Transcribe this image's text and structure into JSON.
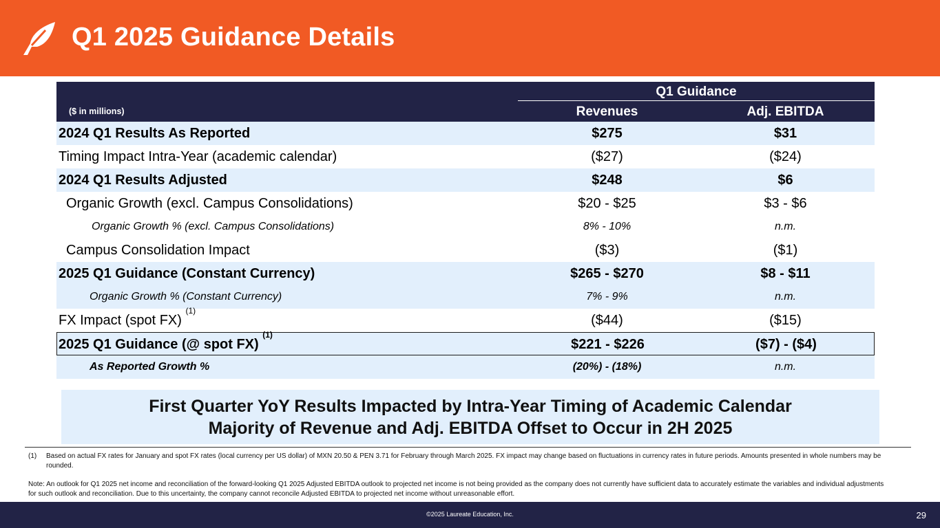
{
  "header": {
    "title": "Q1 2025 Guidance Details"
  },
  "table": {
    "units": "($ in millions)",
    "group_header": "Q1 Guidance",
    "columns": [
      "Revenues",
      "Adj. EBITDA"
    ],
    "rows": [
      {
        "label": "2024 Q1 Results As Reported",
        "revenues": "$275",
        "ebitda": "$31"
      },
      {
        "label": "Timing Impact Intra-Year (academic calendar)",
        "revenues": "($27)",
        "ebitda": "($24)"
      },
      {
        "label": "2024 Q1 Results Adjusted",
        "revenues": "$248",
        "ebitda": "$6"
      },
      {
        "label": "Organic Growth (excl. Campus Consolidations)",
        "revenues": "$20 - $25",
        "ebitda": "$3 - $6"
      },
      {
        "label": "Organic Growth % (excl. Campus Consolidations)",
        "revenues": "8% - 10%",
        "ebitda": "n.m."
      },
      {
        "label": "Campus Consolidation Impact",
        "revenues": "($3)",
        "ebitda": "($1)"
      },
      {
        "label": "2025 Q1 Guidance (Constant Currency)",
        "revenues": "$265 - $270",
        "ebitda": "$8 - $11"
      },
      {
        "label": "Organic Growth % (Constant Currency)",
        "revenues": "7% - 9%",
        "ebitda": "n.m."
      },
      {
        "label": "FX Impact (spot FX)",
        "footnote_ref": "(1)",
        "revenues": "($44)",
        "ebitda": "($15)"
      },
      {
        "label": "2025 Q1 Guidance (@ spot FX)",
        "footnote_ref": "(1)",
        "revenues": "$221 - $226",
        "ebitda": "($7) - ($4)"
      },
      {
        "label": "As Reported Growth %",
        "revenues": "(20%) - (18%)",
        "ebitda": "n.m."
      }
    ]
  },
  "callout": {
    "line1": "First Quarter YoY Results Impacted by Intra-Year Timing of Academic Calendar",
    "line2": "Majority of Revenue and Adj. EBITDA Offset to Occur in 2H 2025"
  },
  "footnotes": {
    "fn1_num": "(1)",
    "fn1_text": "Based on actual FX rates for January and spot FX rates (local currency per US dollar) of MXN 20.50 & PEN 3.71 for February through March 2025. FX impact may change based on fluctuations in currency rates in future periods. Amounts presented in whole numbers may be rounded.",
    "note": "Note: An outlook for Q1 2025 net income and reconciliation of the forward-looking Q1 2025 Adjusted EBITDA outlook to projected net income is not being provided as the company does not currently have sufficient data to accurately estimate the variables and individual adjustments for such outlook and reconciliation. Due to this uncertainty, the company cannot reconcile Adjusted EBITDA to projected net income without unreasonable effort."
  },
  "footer": {
    "copyright": "©2025 Laureate Education, Inc.",
    "page_number": "29"
  },
  "colors": {
    "orange": "#f15a24",
    "navy": "#222346",
    "light_blue": "#e2effc"
  },
  "icons": {
    "logo": "laureate-leaf-icon"
  }
}
